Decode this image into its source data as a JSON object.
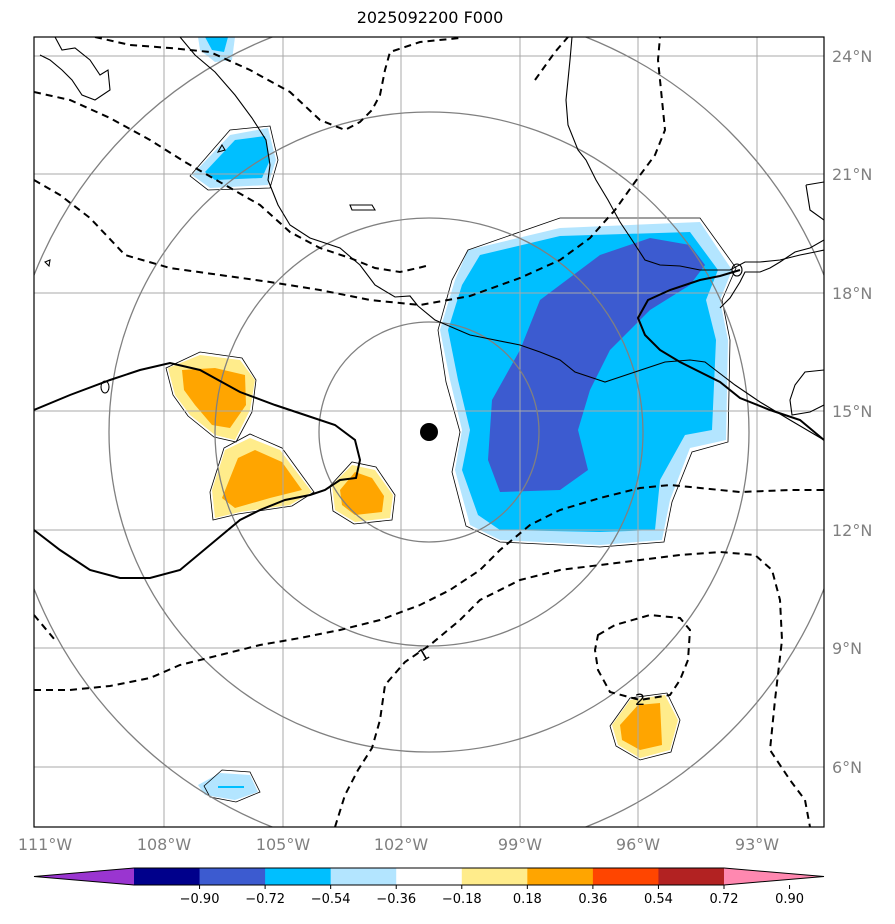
{
  "title": "2025092200 F000",
  "lon_labels": [
    "111°W",
    "108°W",
    "105°W",
    "102°W",
    "99°W",
    "96°W",
    "93°W"
  ],
  "lat_labels": [
    "24°N",
    "21°N",
    "18°N",
    "15°N",
    "12°N",
    "9°N",
    "6°N"
  ],
  "contour_labels": [
    "1",
    "2"
  ],
  "colorbar": {
    "ticks": [
      "−0.90",
      "−0.72",
      "−0.54",
      "−0.36",
      "−0.18",
      "0.18",
      "0.36",
      "0.54",
      "0.72",
      "0.90"
    ],
    "colors": [
      "#9a35d0",
      "#00008b",
      "#3c5bd0",
      "#00bfff",
      "#b3e5ff",
      "#ffffff",
      "#ffec8b",
      "#ffa500",
      "#ff4500",
      "#b22222",
      "#ff88b0"
    ]
  },
  "colors": {
    "neg_light": "#b3e5ff",
    "neg_mid": "#00bfff",
    "neg_dark": "#3c5bd0",
    "pos_light": "#ffec8b",
    "pos_mid": "#ffa500"
  }
}
